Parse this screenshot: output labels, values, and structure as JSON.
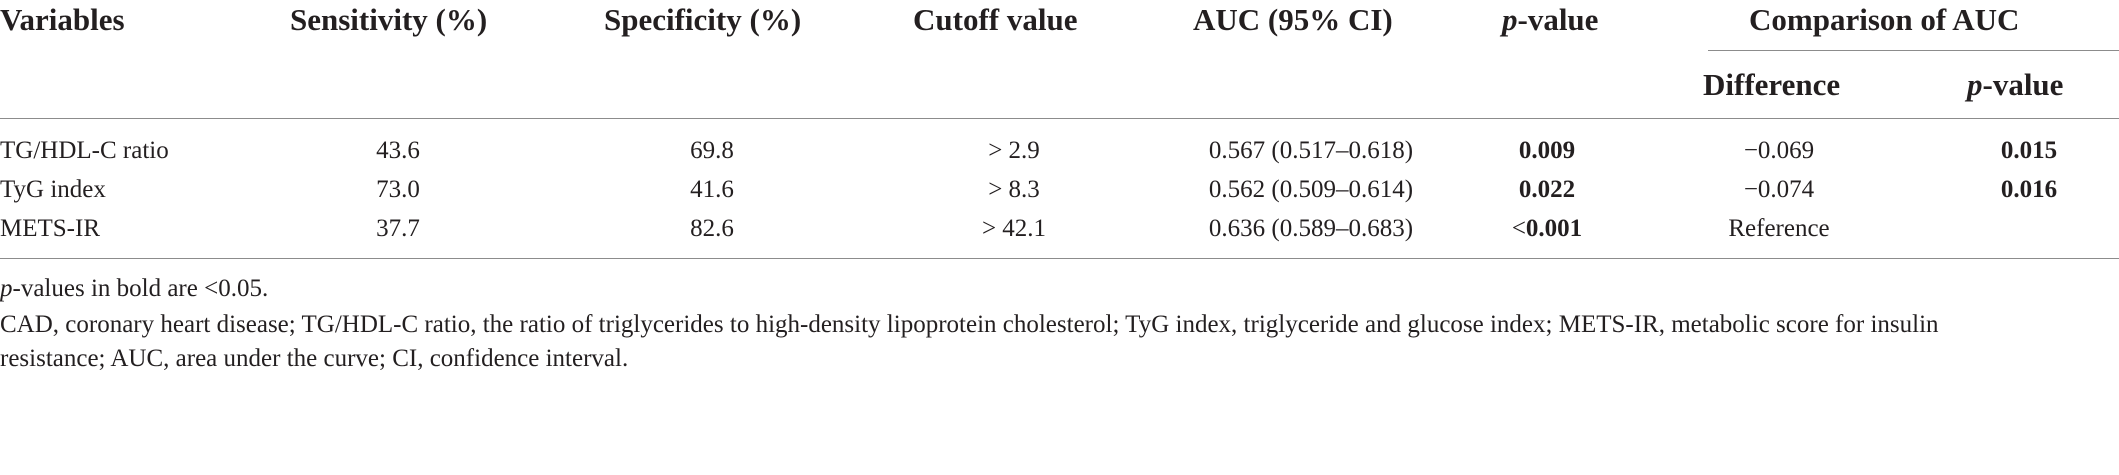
{
  "table": {
    "headers": {
      "variables": "Variables",
      "sensitivity": "Sensitivity (%)",
      "specificity": "Specificity (%)",
      "cutoff": "Cutoff value",
      "auc": "AUC (95% CI)",
      "p_italic": "p",
      "p_rest": "-value",
      "comparison": "Comparison of AUC",
      "difference": "Difference",
      "comp_p_italic": "p",
      "comp_p_rest": "-value"
    },
    "rows": [
      {
        "variable": "TG/HDL-C ratio",
        "sensitivity": "43.6",
        "specificity": "69.8",
        "cutoff": "> 2.9",
        "auc": "0.567 (0.517–0.618)",
        "p_prefix": "",
        "p_value": "0.009",
        "difference": "−0.069",
        "comp_p": "0.015"
      },
      {
        "variable": "TyG index",
        "sensitivity": "73.0",
        "specificity": "41.6",
        "cutoff": "> 8.3",
        "auc": "0.562 (0.509–0.614)",
        "p_prefix": "",
        "p_value": "0.022",
        "difference": "−0.074",
        "comp_p": "0.016"
      },
      {
        "variable": "METS-IR",
        "sensitivity": "37.7",
        "specificity": "82.6",
        "cutoff": "> 42.1",
        "auc": "0.636 (0.589–0.683)",
        "p_prefix": "<",
        "p_value": "0.001",
        "difference": "Reference",
        "comp_p": ""
      }
    ]
  },
  "notes": {
    "bold_note_italic": "p",
    "bold_note_rest": "-values in bold are <0.05.",
    "abbrev_line1": "CAD, coronary heart disease; TG/HDL-C ratio, the ratio of triglycerides to high-density lipoprotein cholesterol; TyG index, triglyceride and glucose index; METS-IR, metabolic score for insulin",
    "abbrev_line2": "resistance; AUC, area under the curve; CI, confidence interval."
  }
}
